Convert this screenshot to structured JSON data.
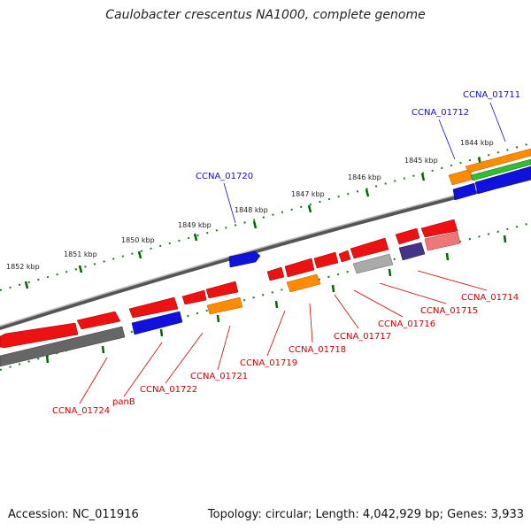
{
  "title": "Caulobacter crescentus NA1000, complete genome",
  "footer": {
    "accession": "Accession: NC_011916",
    "summary": "Topology: circular; Length: 4,042,929 bp; Genes: 3,933"
  },
  "map": {
    "kbp_ticks": [
      "1852 kbp",
      "1851 kbp",
      "1850 kbp",
      "1849 kbp",
      "1848 kbp",
      "1847 kbp",
      "1846 kbp",
      "1845 kbp",
      "1844 kbp"
    ],
    "top_labels": [
      "CCNA_01720",
      "CCNA_01712",
      "CCNA_01711"
    ],
    "bottom_labels": [
      "CCNA_01724",
      "panB",
      "CCNA_01722",
      "CCNA_01721",
      "CCNA_01719",
      "CCNA_01718",
      "CCNA_01717",
      "CCNA_01716",
      "CCNA_01715",
      "CCNA_01714"
    ],
    "colors": {
      "gene_red": "#ee1111",
      "gene_blue": "#1111dd",
      "gene_orange": "#ff8c00",
      "gene_gray": "#666666",
      "gene_green": "#33bb33",
      "label_red": "#cc0000",
      "label_blue": "#1010c0",
      "tick_green": "#007700"
    }
  }
}
